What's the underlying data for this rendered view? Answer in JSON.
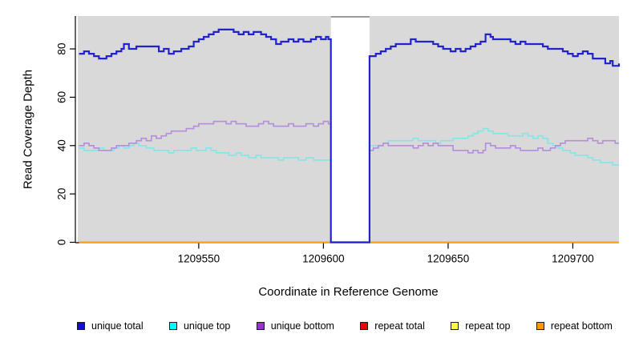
{
  "chart_data": {
    "type": "line",
    "style": "step-after",
    "title": "",
    "xlabel": "Coordinate in Reference Genome",
    "ylabel": "Read Coverage Depth",
    "xlim": [
      1209501.5,
      1209718.5
    ],
    "ylim": [
      0,
      93.6
    ],
    "x_ticks": [
      1209550,
      1209600,
      1209650,
      1209700
    ],
    "x_tick_labels": [
      "1209550",
      "1209600",
      "1209650",
      "1209700"
    ],
    "y_ticks": [
      0,
      20,
      40,
      60,
      80
    ],
    "y_tick_labels": [
      "0",
      "20",
      "40",
      "60",
      "80"
    ],
    "panel_background": "#d9d9d9",
    "gap_region": {
      "start": 1209603,
      "end": 1209618.5,
      "fill": "#ffffff",
      "top_edge_color": "#9c9c9c"
    },
    "axis_color": "#000000",
    "legend_position": "bottom",
    "grid": false,
    "series": [
      {
        "name": "unique total",
        "color": "#2323cd",
        "legend_color": "#0f0fcd",
        "width": 2.2,
        "points": [
          [
            1209502,
            78
          ],
          [
            1209504,
            79
          ],
          [
            1209506,
            78
          ],
          [
            1209508,
            77
          ],
          [
            1209510,
            76
          ],
          [
            1209513,
            77
          ],
          [
            1209515,
            78
          ],
          [
            1209517,
            79
          ],
          [
            1209519,
            80
          ],
          [
            1209520,
            82
          ],
          [
            1209522,
            80
          ],
          [
            1209525,
            81
          ],
          [
            1209531,
            81
          ],
          [
            1209534,
            79
          ],
          [
            1209536,
            80
          ],
          [
            1209538,
            78
          ],
          [
            1209540,
            79
          ],
          [
            1209543,
            80
          ],
          [
            1209546,
            81
          ],
          [
            1209548,
            83
          ],
          [
            1209550,
            84
          ],
          [
            1209552,
            85
          ],
          [
            1209554,
            86
          ],
          [
            1209556,
            87
          ],
          [
            1209558,
            88
          ],
          [
            1209562,
            88
          ],
          [
            1209564,
            87
          ],
          [
            1209566,
            86
          ],
          [
            1209568,
            87
          ],
          [
            1209570,
            86
          ],
          [
            1209572,
            87
          ],
          [
            1209575,
            86
          ],
          [
            1209577,
            85
          ],
          [
            1209579,
            84
          ],
          [
            1209581,
            82
          ],
          [
            1209583,
            83
          ],
          [
            1209586,
            84
          ],
          [
            1209588,
            83
          ],
          [
            1209590,
            84
          ],
          [
            1209592,
            83
          ],
          [
            1209595,
            84
          ],
          [
            1209597,
            85
          ],
          [
            1209599,
            84
          ],
          [
            1209601,
            85
          ],
          [
            1209602,
            84
          ],
          [
            1209603,
            0
          ],
          [
            1209618.5,
            77
          ],
          [
            1209621,
            78
          ],
          [
            1209623,
            79
          ],
          [
            1209625,
            80
          ],
          [
            1209627,
            81
          ],
          [
            1209629,
            82
          ],
          [
            1209634,
            82
          ],
          [
            1209635,
            84
          ],
          [
            1209637,
            83
          ],
          [
            1209641,
            83
          ],
          [
            1209644,
            82
          ],
          [
            1209646,
            81
          ],
          [
            1209648,
            80
          ],
          [
            1209651,
            79
          ],
          [
            1209653,
            80
          ],
          [
            1209655,
            79
          ],
          [
            1209657,
            80
          ],
          [
            1209659,
            81
          ],
          [
            1209661,
            82
          ],
          [
            1209663,
            83
          ],
          [
            1209665,
            86
          ],
          [
            1209667,
            85
          ],
          [
            1209668,
            84
          ],
          [
            1209673,
            84
          ],
          [
            1209675,
            83
          ],
          [
            1209677,
            82
          ],
          [
            1209679,
            83
          ],
          [
            1209681,
            82
          ],
          [
            1209686,
            82
          ],
          [
            1209688,
            81
          ],
          [
            1209690,
            80
          ],
          [
            1209694,
            80
          ],
          [
            1209696,
            79
          ],
          [
            1209698,
            78
          ],
          [
            1209700,
            77
          ],
          [
            1209702,
            78
          ],
          [
            1209704,
            79
          ],
          [
            1209706,
            78
          ],
          [
            1209708,
            76
          ],
          [
            1209711,
            76
          ],
          [
            1209713,
            74
          ],
          [
            1209715,
            75
          ],
          [
            1209716,
            73
          ],
          [
            1209718.5,
            74
          ]
        ]
      },
      {
        "name": "unique top",
        "color": "#82e6e6",
        "legend_color": "#00ffff",
        "width": 1.6,
        "points": [
          [
            1209502,
            39
          ],
          [
            1209504,
            38
          ],
          [
            1209508,
            38
          ],
          [
            1209510,
            39
          ],
          [
            1209512,
            38
          ],
          [
            1209516,
            39
          ],
          [
            1209518,
            40
          ],
          [
            1209520,
            39
          ],
          [
            1209522,
            40
          ],
          [
            1209524,
            41
          ],
          [
            1209526,
            40
          ],
          [
            1209529,
            39
          ],
          [
            1209532,
            38
          ],
          [
            1209536,
            38
          ],
          [
            1209538,
            37
          ],
          [
            1209540,
            38
          ],
          [
            1209545,
            38
          ],
          [
            1209547,
            39
          ],
          [
            1209549,
            38
          ],
          [
            1209553,
            39
          ],
          [
            1209555,
            38
          ],
          [
            1209557,
            37
          ],
          [
            1209560,
            37
          ],
          [
            1209562,
            36
          ],
          [
            1209565,
            37
          ],
          [
            1209567,
            36
          ],
          [
            1209570,
            35
          ],
          [
            1209573,
            36
          ],
          [
            1209575,
            35
          ],
          [
            1209580,
            35
          ],
          [
            1209582,
            34
          ],
          [
            1209584,
            35
          ],
          [
            1209588,
            35
          ],
          [
            1209590,
            34
          ],
          [
            1209593,
            35
          ],
          [
            1209596,
            34
          ],
          [
            1209602,
            34
          ],
          [
            1209603,
            0
          ],
          [
            1209618.5,
            40
          ],
          [
            1209622,
            40
          ],
          [
            1209624,
            41
          ],
          [
            1209626,
            42
          ],
          [
            1209634,
            42
          ],
          [
            1209636,
            43
          ],
          [
            1209638,
            42
          ],
          [
            1209643,
            42
          ],
          [
            1209645,
            41
          ],
          [
            1209647,
            42
          ],
          [
            1209652,
            43
          ],
          [
            1209656,
            43
          ],
          [
            1209658,
            44
          ],
          [
            1209660,
            45
          ],
          [
            1209662,
            46
          ],
          [
            1209664,
            47
          ],
          [
            1209666,
            46
          ],
          [
            1209668,
            45
          ],
          [
            1209672,
            45
          ],
          [
            1209674,
            44
          ],
          [
            1209678,
            44
          ],
          [
            1209680,
            45
          ],
          [
            1209682,
            44
          ],
          [
            1209684,
            43
          ],
          [
            1209686,
            44
          ],
          [
            1209688,
            43
          ],
          [
            1209690,
            41
          ],
          [
            1209692,
            40
          ],
          [
            1209694,
            39
          ],
          [
            1209696,
            38
          ],
          [
            1209699,
            37
          ],
          [
            1209701,
            36
          ],
          [
            1209704,
            36
          ],
          [
            1209706,
            35
          ],
          [
            1209708,
            34
          ],
          [
            1209711,
            33
          ],
          [
            1209714,
            33
          ],
          [
            1209716,
            32
          ],
          [
            1209718.5,
            32
          ]
        ]
      },
      {
        "name": "unique bottom",
        "color": "#b48ddb",
        "legend_color": "#9933cc",
        "width": 1.6,
        "points": [
          [
            1209502,
            40
          ],
          [
            1209504,
            41
          ],
          [
            1209506,
            40
          ],
          [
            1209508,
            39
          ],
          [
            1209510,
            38
          ],
          [
            1209513,
            38
          ],
          [
            1209515,
            39
          ],
          [
            1209517,
            40
          ],
          [
            1209520,
            40
          ],
          [
            1209522,
            41
          ],
          [
            1209525,
            42
          ],
          [
            1209527,
            43
          ],
          [
            1209529,
            42
          ],
          [
            1209531,
            44
          ],
          [
            1209533,
            43
          ],
          [
            1209535,
            44
          ],
          [
            1209537,
            45
          ],
          [
            1209539,
            46
          ],
          [
            1209543,
            46
          ],
          [
            1209545,
            47
          ],
          [
            1209548,
            48
          ],
          [
            1209550,
            49
          ],
          [
            1209554,
            49
          ],
          [
            1209556,
            50
          ],
          [
            1209559,
            50
          ],
          [
            1209561,
            49
          ],
          [
            1209563,
            50
          ],
          [
            1209565,
            49
          ],
          [
            1209567,
            49
          ],
          [
            1209569,
            48
          ],
          [
            1209572,
            48
          ],
          [
            1209574,
            49
          ],
          [
            1209576,
            50
          ],
          [
            1209578,
            49
          ],
          [
            1209580,
            48
          ],
          [
            1209584,
            48
          ],
          [
            1209586,
            49
          ],
          [
            1209588,
            48
          ],
          [
            1209591,
            48
          ],
          [
            1209593,
            49
          ],
          [
            1209596,
            48
          ],
          [
            1209598,
            49
          ],
          [
            1209600,
            50
          ],
          [
            1209602,
            49
          ],
          [
            1209603,
            0
          ],
          [
            1209618.5,
            38
          ],
          [
            1209620,
            39
          ],
          [
            1209622,
            40
          ],
          [
            1209624,
            41
          ],
          [
            1209626,
            40
          ],
          [
            1209632,
            40
          ],
          [
            1209636,
            39
          ],
          [
            1209638,
            40
          ],
          [
            1209640,
            41
          ],
          [
            1209642,
            40
          ],
          [
            1209644,
            41
          ],
          [
            1209646,
            40
          ],
          [
            1209650,
            40
          ],
          [
            1209652,
            38
          ],
          [
            1209656,
            38
          ],
          [
            1209658,
            37
          ],
          [
            1209660,
            38
          ],
          [
            1209662,
            37
          ],
          [
            1209664,
            38
          ],
          [
            1209665,
            41
          ],
          [
            1209667,
            40
          ],
          [
            1209669,
            39
          ],
          [
            1209673,
            39
          ],
          [
            1209675,
            40
          ],
          [
            1209677,
            39
          ],
          [
            1209679,
            38
          ],
          [
            1209684,
            38
          ],
          [
            1209686,
            39
          ],
          [
            1209688,
            38
          ],
          [
            1209691,
            39
          ],
          [
            1209693,
            40
          ],
          [
            1209695,
            41
          ],
          [
            1209697,
            42
          ],
          [
            1209703,
            42
          ],
          [
            1209706,
            43
          ],
          [
            1209708,
            42
          ],
          [
            1209710,
            41
          ],
          [
            1209712,
            42
          ],
          [
            1209716,
            42
          ],
          [
            1209717,
            41
          ],
          [
            1209718.5,
            41
          ]
        ]
      },
      {
        "name": "repeat total",
        "color": "#dd0000",
        "legend_color": "#ee0000",
        "width": 1.6,
        "points": [
          [
            1209502,
            0
          ],
          [
            1209718.5,
            0
          ]
        ]
      },
      {
        "name": "repeat top",
        "color": "#ffff00",
        "legend_color": "#ffff33",
        "width": 1.6,
        "points": [
          [
            1209502,
            0
          ],
          [
            1209718.5,
            0
          ]
        ]
      },
      {
        "name": "repeat bottom",
        "color": "#ff9f1f",
        "legend_color": "#ff9900",
        "width": 2,
        "points": [
          [
            1209502,
            0
          ],
          [
            1209718.5,
            0
          ]
        ]
      }
    ],
    "legend_order": [
      "unique total",
      "unique top",
      "unique bottom",
      "repeat total",
      "repeat top",
      "repeat bottom"
    ],
    "draw_order": [
      "repeat total",
      "repeat top",
      "repeat bottom",
      "unique top",
      "unique bottom",
      "unique total"
    ]
  }
}
